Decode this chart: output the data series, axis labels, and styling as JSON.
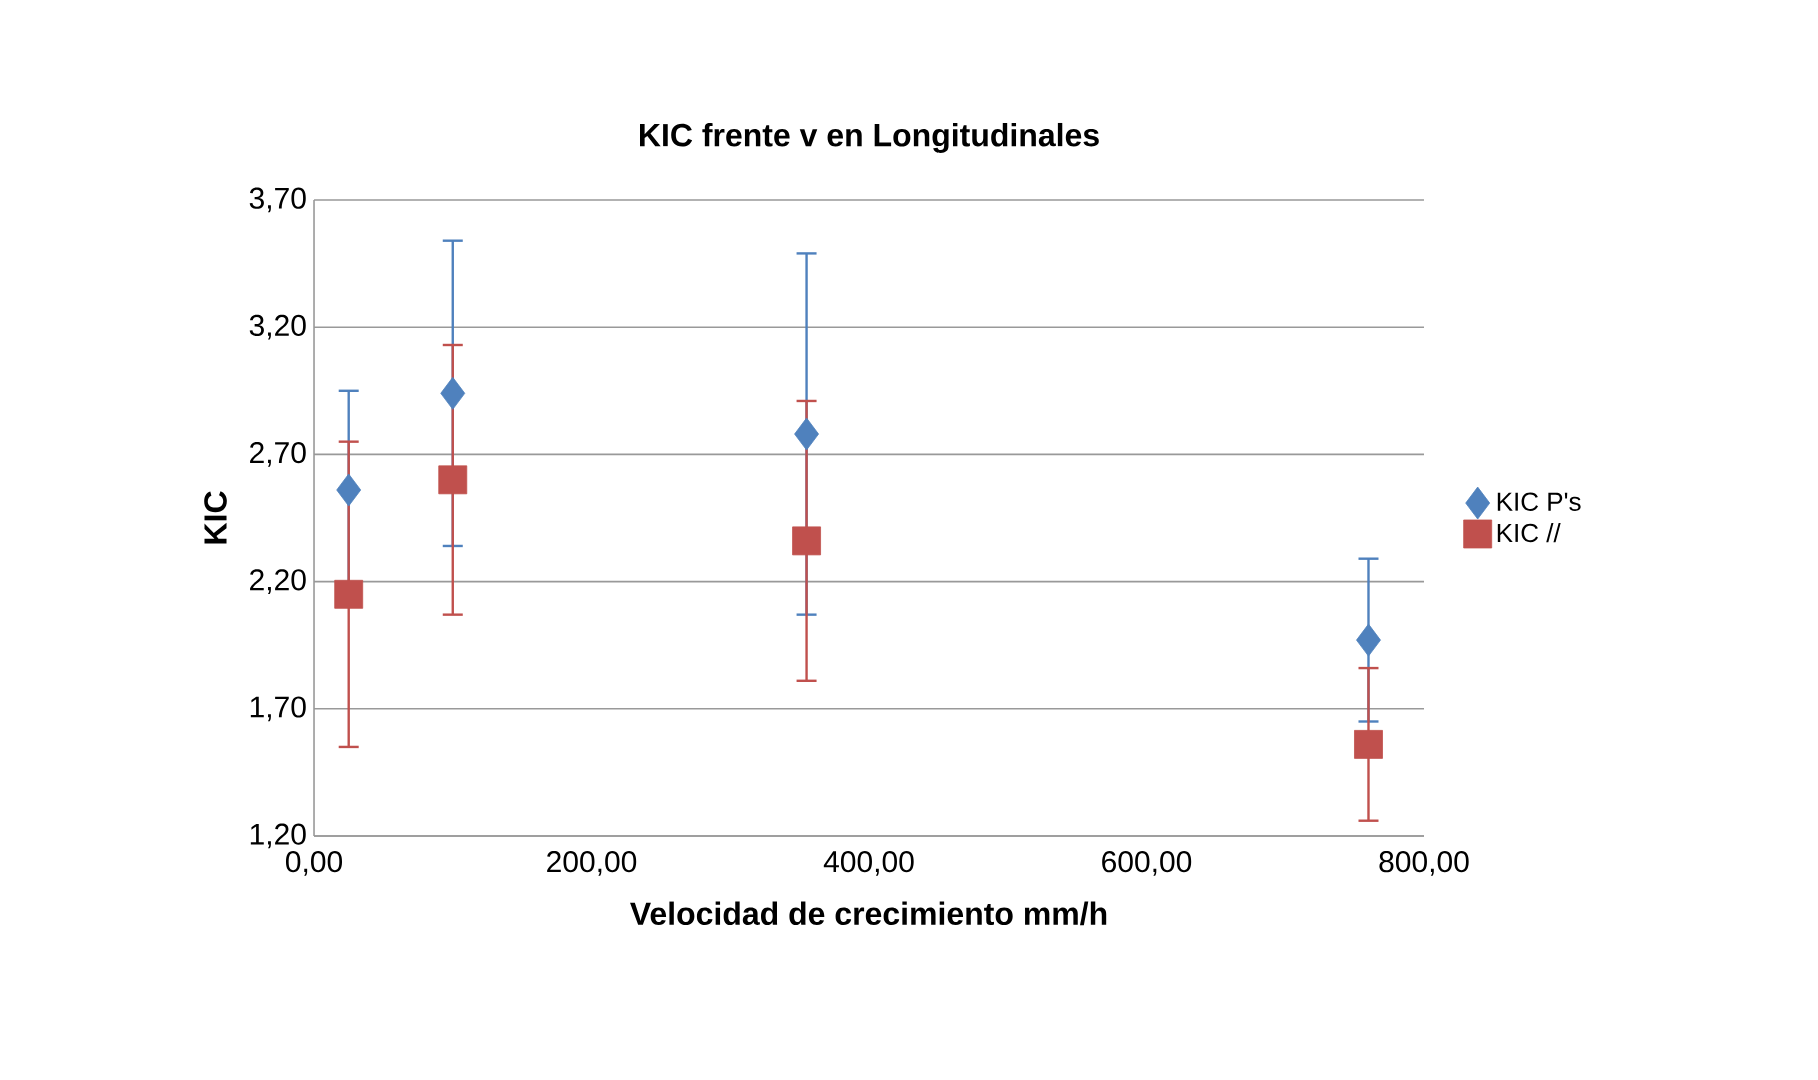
{
  "chart_data": {
    "type": "scatter",
    "title": "KIC frente v en Longitudinales",
    "xlabel": "Velocidad de crecimiento mm/h",
    "ylabel": "KIC",
    "x": [
      25,
      100,
      355,
      760
    ],
    "series": [
      {
        "name": "KIC P's",
        "color": "#4f81bd",
        "marker": "diamond",
        "values": [
          2.56,
          2.94,
          2.78,
          1.97
        ],
        "errors": [
          0.39,
          0.6,
          0.71,
          0.32
        ]
      },
      {
        "name": "KIC //",
        "color": "#c0504d",
        "marker": "square",
        "values": [
          2.15,
          2.6,
          2.36,
          1.56
        ],
        "errors": [
          0.6,
          0.53,
          0.55,
          0.3
        ]
      }
    ],
    "xlim": [
      0,
      800
    ],
    "ylim": [
      1.2,
      3.7
    ],
    "xticks": [
      {
        "value": 0,
        "label": "0,00"
      },
      {
        "value": 200,
        "label": "200,00"
      },
      {
        "value": 400,
        "label": "400,00"
      },
      {
        "value": 600,
        "label": "600,00"
      },
      {
        "value": 800,
        "label": "800,00"
      }
    ],
    "yticks": [
      {
        "value": 1.2,
        "label": "1,20"
      },
      {
        "value": 1.7,
        "label": "1,70"
      },
      {
        "value": 2.2,
        "label": "2,20"
      },
      {
        "value": 2.7,
        "label": "2,70"
      },
      {
        "value": 3.2,
        "label": "3,20"
      },
      {
        "value": 3.7,
        "label": "3,70"
      }
    ],
    "grid": "y",
    "legend": "right"
  }
}
